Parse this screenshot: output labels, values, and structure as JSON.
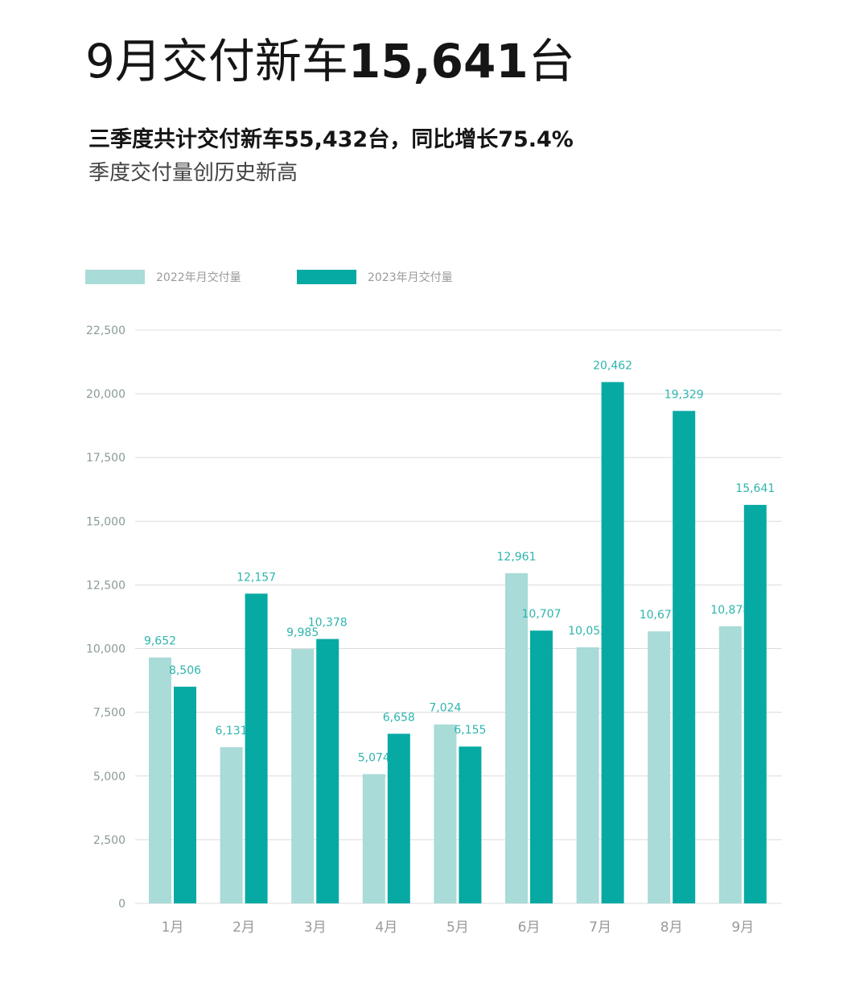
{
  "header": {
    "title_prefix": "9月交付新车",
    "title_number": "15,641",
    "title_suffix": "台",
    "subtitle_bold": "三季度共计交付新车55,432台，同比增长75.4%",
    "subtitle_light": "季度交付量创历史新高"
  },
  "colors": {
    "series_2022": "#a9dbd8",
    "series_2023": "#06aaa3",
    "gridline": "#dcdcdc",
    "data_label": "#2fb5ad"
  },
  "chart_data": {
    "type": "bar",
    "categories": [
      "1月",
      "2月",
      "3月",
      "4月",
      "5月",
      "6月",
      "7月",
      "8月",
      "9月"
    ],
    "series": [
      {
        "name": "2022年月交付量",
        "values": [
          9652,
          6131,
          9985,
          5074,
          7024,
          12961,
          10052,
          10677,
          10878
        ],
        "value_labels": [
          "9,652",
          "6,131",
          "9,985",
          "5,074",
          "7,024",
          "12,961",
          "10,052",
          "10,677",
          "10,878"
        ]
      },
      {
        "name": "2023年月交付量",
        "values": [
          8506,
          12157,
          10378,
          6658,
          6155,
          10707,
          20462,
          19329,
          15641
        ],
        "value_labels": [
          "8,506",
          "12,157",
          "10,378",
          "6,658",
          "6,155",
          "10,707",
          "20,462",
          "19,329",
          "15,641"
        ]
      }
    ],
    "ylim": [
      0,
      22500
    ],
    "yticks": [
      0,
      2500,
      5000,
      7500,
      10000,
      12500,
      15000,
      17500,
      20000,
      22500
    ],
    "ytick_labels": [
      "0",
      "2,500",
      "5,000",
      "7,500",
      "10,000",
      "12,500",
      "15,000",
      "17,500",
      "20,000",
      "22,500"
    ],
    "grid": true,
    "legend_position": "top-left"
  }
}
